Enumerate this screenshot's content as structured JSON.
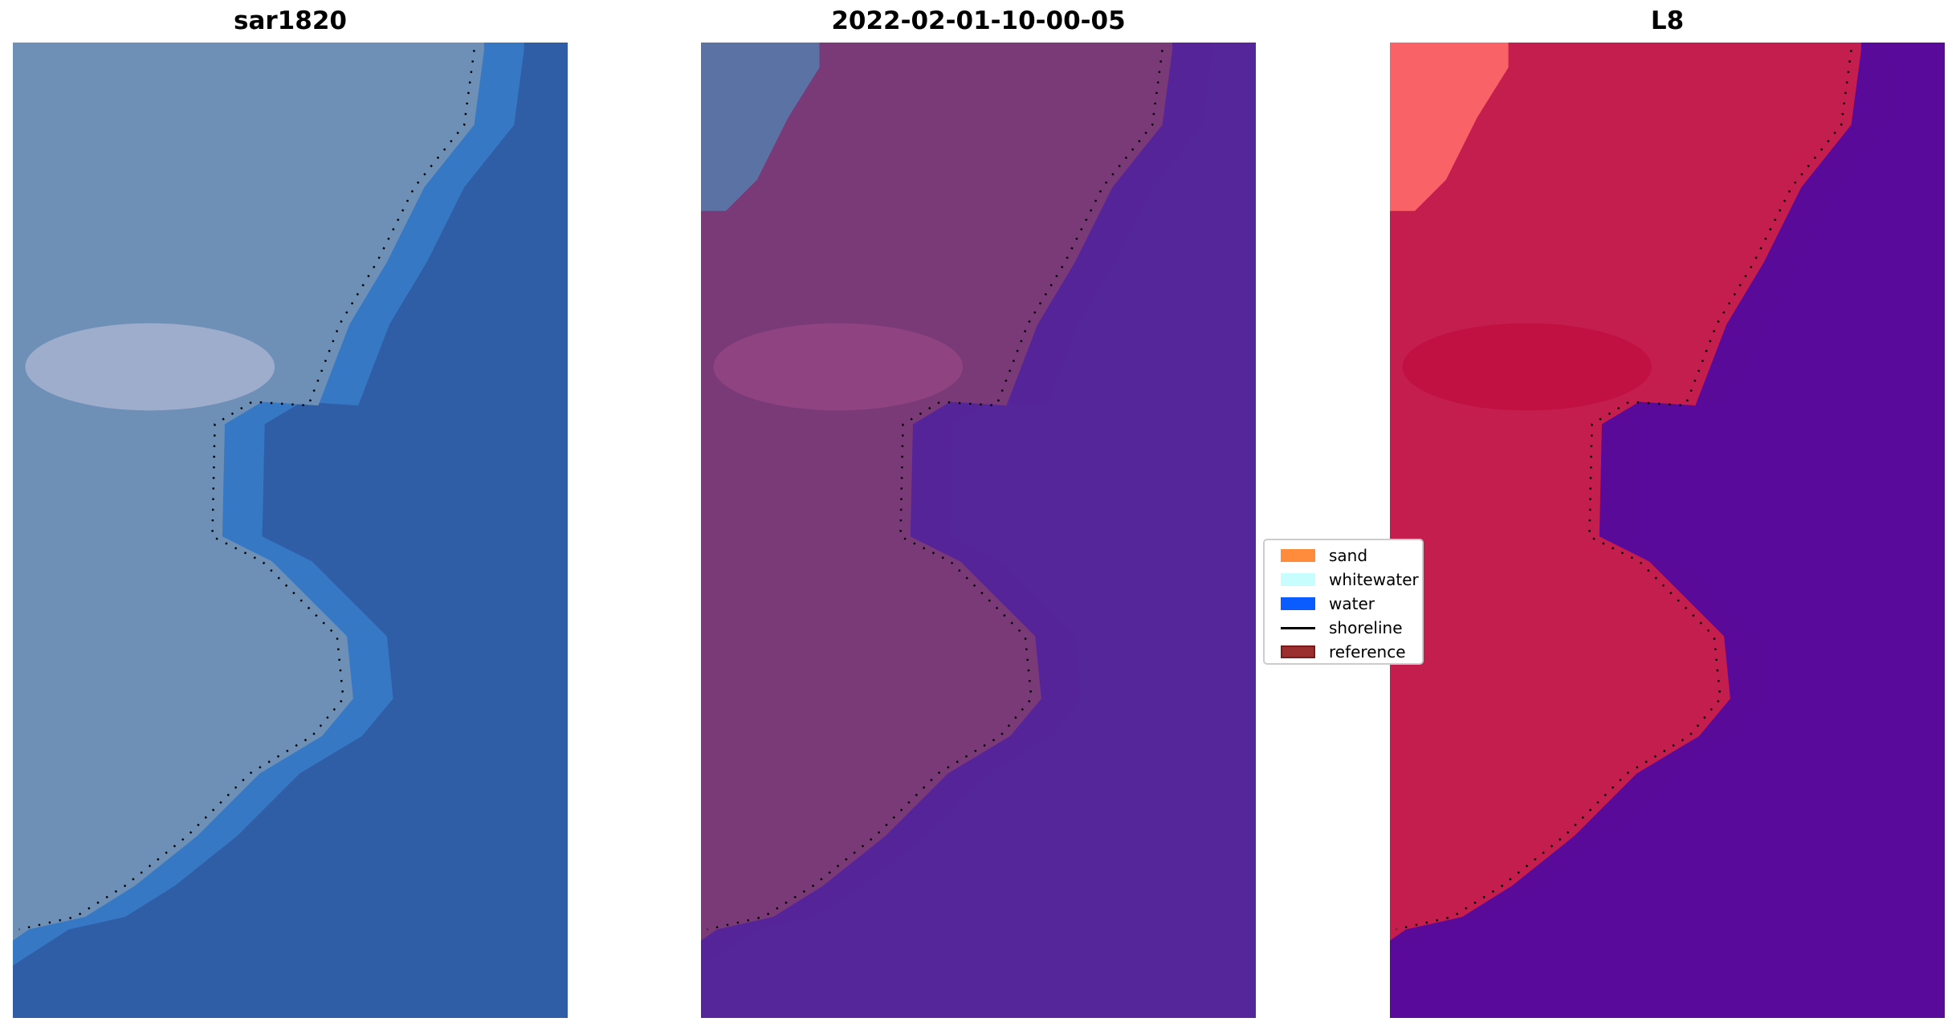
{
  "panels": [
    {
      "title": "sar1820",
      "land_color": "#6e8fb6",
      "water_color": "#2f5ea6",
      "corner_color": "#6e8fb6",
      "highlight_color": "#c9c6e0",
      "nearshore_color": "#3d8ad8"
    },
    {
      "title": "2022-02-01-10-00-05",
      "land_color": "#7a3a78",
      "water_color": "#55259a",
      "corner_color": "#5779a8",
      "highlight_color": "#a04a86",
      "nearshore_color": "#55259a"
    },
    {
      "title": "L8",
      "land_color": "#c41e4e",
      "water_color": "#5a0a9a",
      "corner_color": "#ff6a6a",
      "highlight_color": "#c00838",
      "nearshore_color": "#5a0a9a"
    }
  ],
  "legend": {
    "items": [
      {
        "label": "sand",
        "color": "#ff8c3c",
        "kind": "patch"
      },
      {
        "label": "whitewater",
        "color": "#c8fdfd",
        "kind": "patch"
      },
      {
        "label": "water",
        "color": "#0a5cff",
        "kind": "patch"
      },
      {
        "label": "shoreline",
        "color": "#000000",
        "kind": "line"
      },
      {
        "label": "reference",
        "color": "#9b2f2f",
        "kind": "patch"
      }
    ]
  }
}
